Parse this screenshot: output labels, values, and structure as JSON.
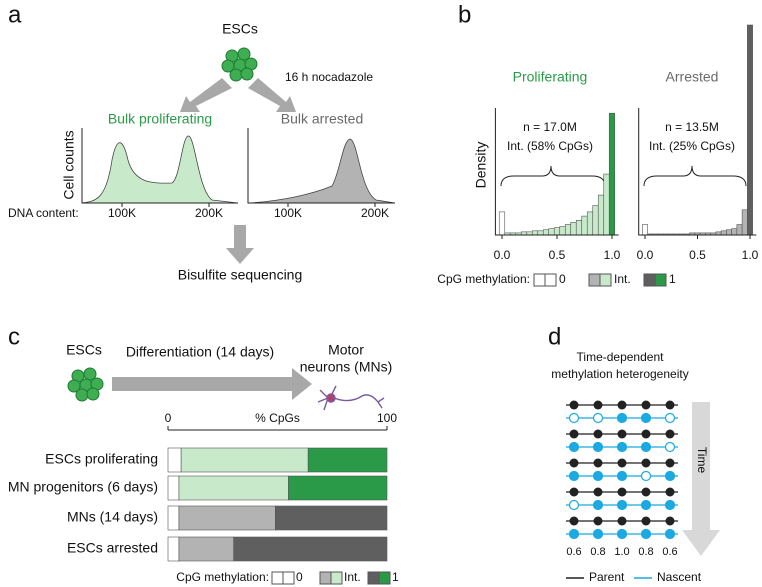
{
  "panel_a": {
    "label": "a",
    "source": "ESCs",
    "treatment": "16 h nocadazole",
    "proliferating": "Bulk proliferating",
    "arrested": "Bulk arrested",
    "y_label": "Cell counts",
    "x_label": "DNA content:",
    "x_ticks_proliferating": [
      "100K",
      "200K"
    ],
    "x_ticks_arrested": [
      "100K",
      "200K"
    ],
    "next_step": "Bisulfite sequencing"
  },
  "panel_b": {
    "label": "b",
    "y_label": "Density",
    "x_label": "CpG methylation:",
    "legend": [
      "0",
      "Int.",
      "1"
    ]
  },
  "panel_c": {
    "label": "c",
    "source": "ESCs",
    "process": "Differentiation (14 days)",
    "target": [
      "Motor",
      "neurons (MNs)"
    ]
  },
  "panel_d": {
    "label": "d",
    "title": [
      "Time-dependent",
      "methylation heterogeneity"
    ],
    "axis": "Time",
    "nascent_rows": [
      [
        0,
        0,
        1,
        1,
        0
      ],
      [
        1,
        1,
        1,
        1,
        0
      ],
      [
        1,
        1,
        1,
        0,
        1
      ],
      [
        0,
        1,
        1,
        1,
        1
      ],
      [
        1,
        1,
        1,
        1,
        1
      ]
    ],
    "column_fractions": [
      0.6,
      0.8,
      {
        "value": 1,
        "label": "1.0"
      },
      0.8,
      0.6
    ],
    "parent_color": "#222222",
    "nascent_color": "#1aa9e0",
    "legend": [
      "Parent",
      "Nascent"
    ]
  },
  "chart_data": [
    {
      "type": "histogram",
      "title": "Proliferating",
      "title_color": "#2a9a48",
      "annotation": [
        "n = 17.0M",
        "Int. (58% CpGs)"
      ],
      "bins": [
        -0.025,
        0.025,
        0.075,
        0.125,
        0.175,
        0.225,
        0.275,
        0.325,
        0.375,
        0.425,
        0.475,
        0.525,
        0.575,
        0.625,
        0.675,
        0.725,
        0.775,
        0.825,
        0.875,
        0.925,
        0.975,
        1.025
      ],
      "values": [
        11,
        1,
        1,
        1,
        1.5,
        1.5,
        2,
        2,
        2.5,
        3,
        3.5,
        4,
        5,
        6,
        7,
        9,
        11,
        14,
        19,
        29,
        58
      ],
      "colors": [
        "#ffffff",
        "#c8eacb",
        "#2a9a48"
      ],
      "xlim": [
        -0.06,
        1.06
      ],
      "xticks": [
        {
          "value": 0,
          "label": "0.0"
        },
        0.5,
        {
          "value": 1,
          "label": "1.0"
        }
      ],
      "ylim": [
        0,
        100
      ]
    },
    {
      "type": "histogram",
      "title": "Arrested",
      "title_color": "#6a6a6a",
      "annotation": [
        "n = 13.5M",
        "Int. (25% CpGs)"
      ],
      "bins": [
        -0.025,
        0.025,
        0.075,
        0.125,
        0.175,
        0.225,
        0.275,
        0.325,
        0.375,
        0.425,
        0.475,
        0.525,
        0.575,
        0.625,
        0.675,
        0.725,
        0.775,
        0.825,
        0.875,
        0.925,
        0.975,
        1.025
      ],
      "values": [
        5,
        0.5,
        0.5,
        0.5,
        0.5,
        0.5,
        0.5,
        0.5,
        0.5,
        1,
        1,
        1,
        1,
        1,
        1.5,
        2,
        2.5,
        3,
        5,
        12,
        100
      ],
      "colors": [
        "#ffffff",
        "#b3b3b3",
        "#5f5f5f"
      ],
      "xlim": [
        -0.06,
        1.06
      ],
      "xticks": [
        {
          "value": 0,
          "label": "0.0"
        },
        0.5,
        {
          "value": 1,
          "label": "1.0"
        }
      ],
      "ylim": [
        0,
        100
      ]
    },
    {
      "type": "stacked_hbar",
      "x_label": "% CpGs",
      "legend_title": "CpG methylation:",
      "categories": [
        "ESCs proliferating",
        "MN progenitors (6 days)",
        "MNs (14 days)",
        "ESCs arrested"
      ],
      "series": [
        {
          "name": "0",
          "colors": [
            "#ffffff",
            "#ffffff",
            "#ffffff",
            "#ffffff"
          ],
          "values": [
            6,
            5,
            5,
            5
          ]
        },
        {
          "name": "Int.",
          "colors": [
            "#c8eacb",
            "#c8eacb",
            "#b3b3b3",
            "#b3b3b3"
          ],
          "values": [
            58,
            50,
            44,
            25
          ]
        },
        {
          "name": "1",
          "colors": [
            "#2a9a48",
            "#2a9a48",
            "#5f5f5f",
            "#5f5f5f"
          ],
          "values": [
            36,
            45,
            51,
            70
          ]
        }
      ],
      "xlim": [
        0,
        100
      ],
      "xticks": [
        0,
        100
      ]
    }
  ]
}
